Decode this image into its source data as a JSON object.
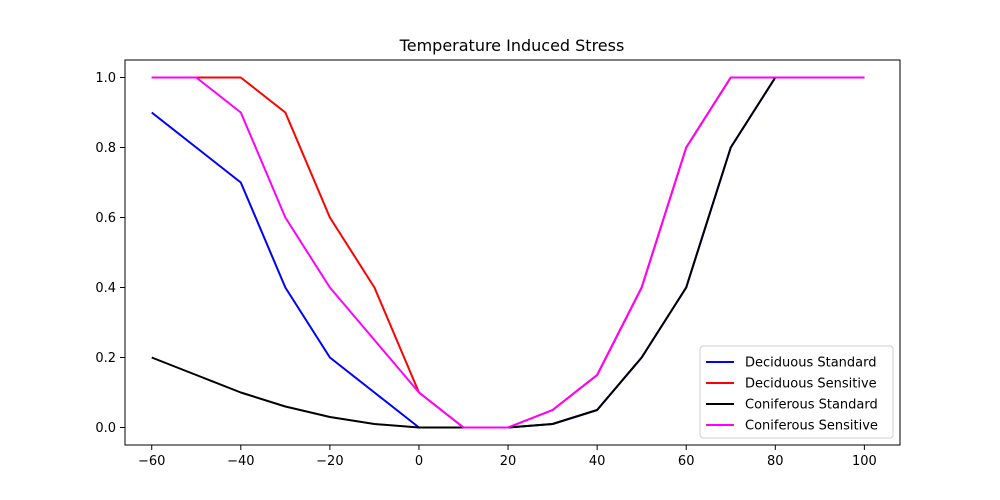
{
  "chart_data": {
    "type": "line",
    "title": "Temperature Induced Stress",
    "xlabel": "",
    "ylabel": "",
    "xlim": [
      -66,
      108
    ],
    "ylim": [
      -0.05,
      1.05
    ],
    "x_ticks": [
      -60,
      -40,
      -20,
      0,
      20,
      40,
      60,
      80,
      100
    ],
    "x_tick_labels": [
      "−60",
      "−40",
      "−20",
      "0",
      "20",
      "40",
      "60",
      "80",
      "100"
    ],
    "y_ticks": [
      0.0,
      0.2,
      0.4,
      0.6,
      0.8,
      1.0
    ],
    "y_tick_labels": [
      "0.0",
      "0.2",
      "0.4",
      "0.6",
      "0.8",
      "1.0"
    ],
    "grid": false,
    "legend_position": "lower-right",
    "x": [
      -60,
      -50,
      -40,
      -30,
      -20,
      -10,
      0,
      10,
      20,
      30,
      40,
      50,
      60,
      70,
      80,
      90,
      100
    ],
    "series": [
      {
        "name": "Deciduous Standard",
        "color": "#0000ff",
        "values": [
          0.9,
          0.8,
          0.7,
          0.4,
          0.2,
          0.1,
          0.0,
          0.0,
          0.0,
          0.01,
          0.05,
          0.2,
          0.4,
          0.8,
          1.0,
          1.0,
          1.0
        ]
      },
      {
        "name": "Deciduous Sensitive",
        "color": "#ff0000",
        "values": [
          1.0,
          1.0,
          1.0,
          0.9,
          0.6,
          0.4,
          0.1,
          0.0,
          0.0,
          0.05,
          0.15,
          0.4,
          0.8,
          1.0,
          1.0,
          1.0,
          1.0
        ]
      },
      {
        "name": "Coniferous Standard",
        "color": "#000000",
        "values": [
          0.2,
          0.15,
          0.1,
          0.06,
          0.03,
          0.01,
          0.0,
          0.0,
          0.0,
          0.01,
          0.05,
          0.2,
          0.4,
          0.8,
          1.0,
          1.0,
          1.0
        ]
      },
      {
        "name": "Coniferous Sensitive",
        "color": "#ff00ff",
        "values": [
          1.0,
          1.0,
          0.9,
          0.6,
          0.4,
          0.25,
          0.1,
          0.0,
          0.0,
          0.05,
          0.15,
          0.4,
          0.8,
          1.0,
          1.0,
          1.0,
          1.0
        ]
      }
    ]
  }
}
